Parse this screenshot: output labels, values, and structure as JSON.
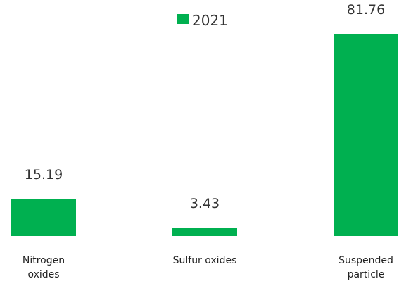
{
  "chart_data": {
    "type": "bar",
    "categories": [
      "Nitrogen oxides",
      "Sulfur oxides",
      "Suspended particle"
    ],
    "series": [
      {
        "name": "2021",
        "color": "#00b050",
        "values": [
          15.19,
          3.43,
          81.76
        ]
      }
    ]
  }
}
